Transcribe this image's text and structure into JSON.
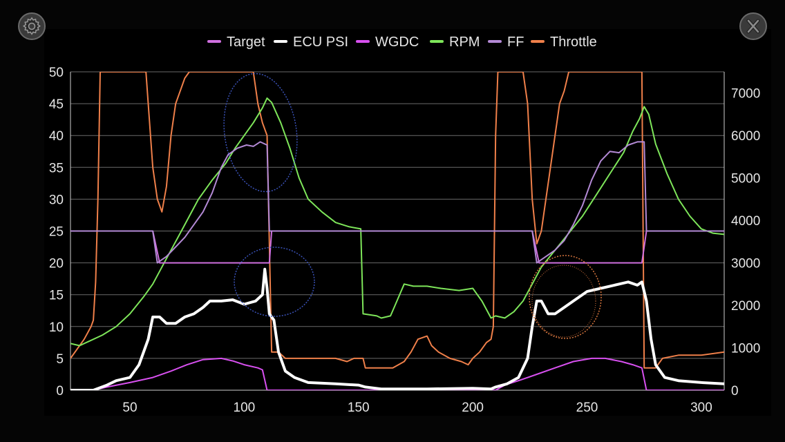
{
  "controls": {
    "settings_icon": "gear-icon",
    "close_icon": "close-icon"
  },
  "chart_data": {
    "type": "line",
    "xlim": [
      24,
      310
    ],
    "x_ticks": [
      "50",
      "100",
      "150",
      "200",
      "250",
      "300"
    ],
    "y_left_lim": [
      0,
      50
    ],
    "y_left_ticks": [
      "0",
      "5",
      "10",
      "15",
      "20",
      "25",
      "30",
      "35",
      "40",
      "45",
      "50"
    ],
    "y_right_lim": [
      0,
      7500
    ],
    "y_right_ticks": [
      "0",
      "1000",
      "2000",
      "3000",
      "4000",
      "5000",
      "6000",
      "7000"
    ],
    "grid": true,
    "legend_position": "top-center",
    "series": [
      {
        "name": "Target",
        "color": "#d070e0",
        "axis": "left",
        "points": [
          [
            24,
            25
          ],
          [
            60,
            25
          ],
          [
            63,
            20
          ],
          [
            111,
            20
          ],
          [
            112,
            25
          ],
          [
            226,
            25
          ],
          [
            229,
            20
          ],
          [
            274,
            20
          ],
          [
            276,
            25
          ],
          [
            310,
            25
          ]
        ]
      },
      {
        "name": "ECU PSI",
        "color": "#ffffff",
        "axis": "left",
        "points": [
          [
            24,
            0
          ],
          [
            34,
            0
          ],
          [
            40,
            0.8
          ],
          [
            44,
            1.5
          ],
          [
            50,
            2
          ],
          [
            54,
            4
          ],
          [
            58,
            8
          ],
          [
            60,
            11.5
          ],
          [
            63,
            11.5
          ],
          [
            66,
            10.5
          ],
          [
            70,
            10.5
          ],
          [
            74,
            11.5
          ],
          [
            78,
            12
          ],
          [
            82,
            13
          ],
          [
            85,
            14
          ],
          [
            90,
            14
          ],
          [
            95,
            14.2
          ],
          [
            100,
            13.5
          ],
          [
            105,
            14
          ],
          [
            108,
            15
          ],
          [
            109,
            19
          ],
          [
            110,
            16
          ],
          [
            111,
            12
          ],
          [
            113,
            11
          ],
          [
            115,
            6
          ],
          [
            118,
            3
          ],
          [
            122,
            2
          ],
          [
            128,
            1.2
          ],
          [
            140,
            1
          ],
          [
            150,
            0.8
          ],
          [
            153,
            0.5
          ],
          [
            160,
            0.2
          ],
          [
            180,
            0.2
          ],
          [
            200,
            0.3
          ],
          [
            208,
            0.2
          ],
          [
            210,
            0.5
          ],
          [
            215,
            1
          ],
          [
            220,
            2
          ],
          [
            224,
            5
          ],
          [
            226,
            10
          ],
          [
            228,
            14
          ],
          [
            230,
            14
          ],
          [
            233,
            12
          ],
          [
            236,
            12
          ],
          [
            240,
            13
          ],
          [
            244,
            14
          ],
          [
            250,
            15.5
          ],
          [
            256,
            16
          ],
          [
            262,
            16.5
          ],
          [
            268,
            17
          ],
          [
            272,
            16.5
          ],
          [
            274,
            17
          ],
          [
            276,
            14
          ],
          [
            278,
            8
          ],
          [
            280,
            4
          ],
          [
            284,
            2
          ],
          [
            290,
            1.5
          ],
          [
            300,
            1.2
          ],
          [
            310,
            1
          ]
        ]
      },
      {
        "name": "WGDC",
        "color": "#d850f0",
        "axis": "left",
        "points": [
          [
            24,
            0
          ],
          [
            34,
            0
          ],
          [
            40,
            0.5
          ],
          [
            50,
            1.2
          ],
          [
            60,
            2
          ],
          [
            68,
            3
          ],
          [
            75,
            4
          ],
          [
            82,
            4.8
          ],
          [
            90,
            5
          ],
          [
            95,
            4.6
          ],
          [
            100,
            4
          ],
          [
            106,
            3.5
          ],
          [
            108,
            3.2
          ],
          [
            110,
            0
          ],
          [
            210,
            0
          ],
          [
            214,
            0.8
          ],
          [
            220,
            1.5
          ],
          [
            228,
            2.5
          ],
          [
            236,
            3.5
          ],
          [
            244,
            4.5
          ],
          [
            252,
            5
          ],
          [
            258,
            5
          ],
          [
            265,
            4.5
          ],
          [
            270,
            4
          ],
          [
            274,
            3.5
          ],
          [
            276,
            0
          ],
          [
            310,
            0
          ]
        ]
      },
      {
        "name": "RPM",
        "color": "#7ee65a",
        "axis": "right",
        "points": [
          [
            24,
            1100
          ],
          [
            28,
            1050
          ],
          [
            32,
            1150
          ],
          [
            38,
            1300
          ],
          [
            44,
            1500
          ],
          [
            50,
            1800
          ],
          [
            56,
            2200
          ],
          [
            60,
            2500
          ],
          [
            64,
            2900
          ],
          [
            68,
            3300
          ],
          [
            72,
            3700
          ],
          [
            76,
            4100
          ],
          [
            80,
            4500
          ],
          [
            86,
            4950
          ],
          [
            92,
            5350
          ],
          [
            96,
            5700
          ],
          [
            100,
            6000
          ],
          [
            104,
            6300
          ],
          [
            108,
            6650
          ],
          [
            110,
            6880
          ],
          [
            112,
            6780
          ],
          [
            116,
            6300
          ],
          [
            120,
            5700
          ],
          [
            124,
            5000
          ],
          [
            128,
            4500
          ],
          [
            134,
            4200
          ],
          [
            140,
            3950
          ],
          [
            146,
            3850
          ],
          [
            151,
            3800
          ],
          [
            152,
            1800
          ],
          [
            158,
            1750
          ],
          [
            160,
            1700
          ],
          [
            164,
            1750
          ],
          [
            166,
            2000
          ],
          [
            170,
            2500
          ],
          [
            174,
            2450
          ],
          [
            180,
            2450
          ],
          [
            186,
            2400
          ],
          [
            194,
            2350
          ],
          [
            200,
            2400
          ],
          [
            204,
            2100
          ],
          [
            208,
            1700
          ],
          [
            210,
            1750
          ],
          [
            214,
            1700
          ],
          [
            218,
            1850
          ],
          [
            222,
            2100
          ],
          [
            226,
            2500
          ],
          [
            230,
            2900
          ],
          [
            236,
            3300
          ],
          [
            242,
            3700
          ],
          [
            248,
            4100
          ],
          [
            254,
            4600
          ],
          [
            260,
            5100
          ],
          [
            266,
            5600
          ],
          [
            270,
            6100
          ],
          [
            273,
            6400
          ],
          [
            275,
            6680
          ],
          [
            277,
            6500
          ],
          [
            280,
            5800
          ],
          [
            285,
            5100
          ],
          [
            290,
            4500
          ],
          [
            295,
            4100
          ],
          [
            300,
            3800
          ],
          [
            305,
            3700
          ],
          [
            310,
            3670
          ]
        ]
      },
      {
        "name": "FF",
        "color": "#b48ad6",
        "axis": "left",
        "points": [
          [
            24,
            25
          ],
          [
            60,
            25
          ],
          [
            62,
            20
          ],
          [
            66,
            21
          ],
          [
            70,
            22.5
          ],
          [
            74,
            24
          ],
          [
            78,
            26
          ],
          [
            82,
            28
          ],
          [
            86,
            31
          ],
          [
            90,
            35
          ],
          [
            93,
            37
          ],
          [
            97,
            38
          ],
          [
            101,
            38.5
          ],
          [
            104,
            38.3
          ],
          [
            107,
            39
          ],
          [
            110,
            38.5
          ],
          [
            111,
            25
          ],
          [
            226,
            25
          ],
          [
            228,
            20
          ],
          [
            232,
            21
          ],
          [
            236,
            22
          ],
          [
            240,
            23.5
          ],
          [
            244,
            26
          ],
          [
            248,
            29
          ],
          [
            252,
            33
          ],
          [
            256,
            36
          ],
          [
            260,
            37.5
          ],
          [
            264,
            37.3
          ],
          [
            268,
            38.5
          ],
          [
            272,
            39
          ],
          [
            275,
            39
          ],
          [
            276,
            25
          ],
          [
            310,
            25
          ]
        ]
      },
      {
        "name": "Throttle",
        "color": "#f0804a",
        "axis": "left",
        "points": [
          [
            24,
            5
          ],
          [
            27,
            6.5
          ],
          [
            30,
            8
          ],
          [
            33,
            10
          ],
          [
            34,
            11
          ],
          [
            35,
            17
          ],
          [
            36,
            30
          ],
          [
            37,
            50
          ],
          [
            42,
            50
          ],
          [
            55,
            50
          ],
          [
            57,
            50
          ],
          [
            58,
            45
          ],
          [
            60,
            35
          ],
          [
            62,
            30
          ],
          [
            64,
            28
          ],
          [
            66,
            32
          ],
          [
            68,
            40
          ],
          [
            70,
            45
          ],
          [
            72,
            47
          ],
          [
            74,
            49
          ],
          [
            76,
            50
          ],
          [
            104,
            50
          ],
          [
            106,
            45
          ],
          [
            108,
            42
          ],
          [
            110,
            40
          ],
          [
            112,
            6
          ],
          [
            115,
            6
          ],
          [
            118,
            5
          ],
          [
            130,
            5
          ],
          [
            140,
            5
          ],
          [
            145,
            4.5
          ],
          [
            148,
            5
          ],
          [
            152,
            5
          ],
          [
            153,
            3.5
          ],
          [
            165,
            3.5
          ],
          [
            170,
            4.5
          ],
          [
            173,
            6
          ],
          [
            176,
            8
          ],
          [
            180,
            8.5
          ],
          [
            182,
            7
          ],
          [
            185,
            6
          ],
          [
            190,
            5
          ],
          [
            195,
            4.5
          ],
          [
            198,
            4
          ],
          [
            200,
            5
          ],
          [
            203,
            6
          ],
          [
            206,
            7.5
          ],
          [
            208,
            8
          ],
          [
            209,
            10
          ],
          [
            210,
            40
          ],
          [
            211,
            50
          ],
          [
            222,
            50
          ],
          [
            224,
            45
          ],
          [
            226,
            30
          ],
          [
            228,
            23
          ],
          [
            230,
            25
          ],
          [
            232,
            30
          ],
          [
            234,
            35
          ],
          [
            236,
            40
          ],
          [
            238,
            45
          ],
          [
            240,
            47
          ],
          [
            242,
            50
          ],
          [
            274,
            50
          ],
          [
            275,
            3.5
          ],
          [
            280,
            3.5
          ],
          [
            283,
            5
          ],
          [
            290,
            5.5
          ],
          [
            300,
            5.5
          ],
          [
            310,
            6
          ]
        ]
      }
    ]
  }
}
